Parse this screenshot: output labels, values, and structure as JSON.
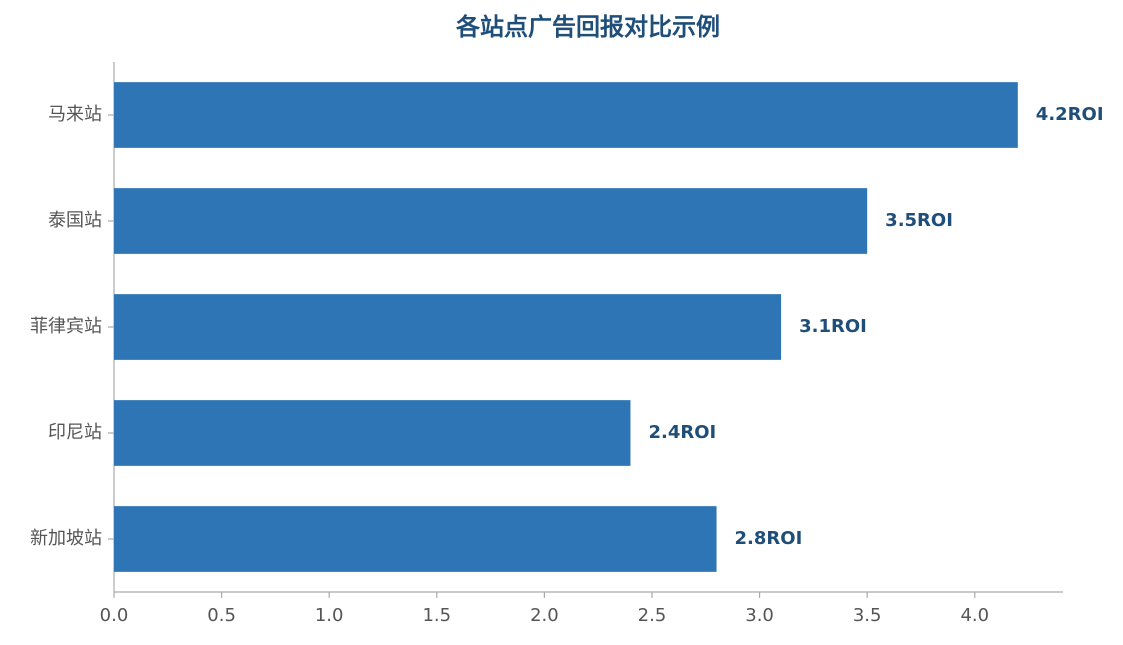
{
  "chart_data": {
    "type": "bar",
    "orientation": "horizontal",
    "title": "各站点广告回报对比示例",
    "categories": [
      "马来站",
      "泰国站",
      "菲律宾站",
      "印尼站",
      "新加坡站"
    ],
    "values": [
      4.2,
      3.5,
      3.1,
      2.4,
      2.8
    ],
    "value_labels": [
      "4.2ROI",
      "3.5ROI",
      "3.1ROI",
      "2.4ROI",
      "2.8ROI"
    ],
    "color": "#2e75b6",
    "xlim": [
      0,
      4.41
    ],
    "xticks": [
      {
        "value": 0,
        "label": "0.0"
      },
      0.5,
      {
        "value": 1,
        "label": "1.0"
      },
      1.5,
      {
        "value": 2,
        "label": "2.0"
      },
      2.5,
      {
        "value": 3,
        "label": "3.0"
      },
      3.5,
      {
        "value": 4,
        "label": "4.0"
      }
    ],
    "grid": false
  }
}
